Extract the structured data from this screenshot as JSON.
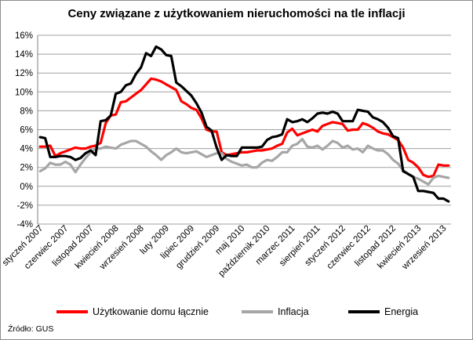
{
  "chart_data": {
    "type": "line",
    "title": "Ceny związane z użytkowaniem nieruchomości na tle inflacji",
    "source": "Źródło: GUS",
    "ylim": [
      -4,
      16
    ],
    "yticks": [
      -4,
      -2,
      0,
      2,
      4,
      6,
      8,
      10,
      12,
      14,
      16
    ],
    "ytick_format": "percent",
    "grid": "horizontal",
    "legend_position": "bottom",
    "x": [
      "styczeń 2007",
      "luty 2007",
      "marzec 2007",
      "kwiecień 2007",
      "maj 2007",
      "czerwiec 2007",
      "lipiec 2007",
      "sierpień 2007",
      "wrzesień 2007",
      "październik 2007",
      "listopad 2007",
      "grudzień 2007",
      "styczeń 2008",
      "luty 2008",
      "marzec 2008",
      "kwiecień 2008",
      "maj 2008",
      "czerwiec 2008",
      "lipiec 2008",
      "sierpień 2008",
      "wrzesień 2008",
      "październik 2008",
      "listopad 2008",
      "grudzień 2008",
      "styczeń 2009",
      "luty 2009",
      "marzec 2009",
      "kwiecień 2009",
      "maj 2009",
      "czerwiec 2009",
      "lipiec 2009",
      "sierpień 2009",
      "wrzesień 2009",
      "październik 2009",
      "listopad 2009",
      "grudzień 2009",
      "styczeń 2010",
      "luty 2010",
      "marzec 2010",
      "kwiecień 2010",
      "maj 2010",
      "czerwiec 2010",
      "lipiec 2010",
      "sierpień 2010",
      "wrzesień 2010",
      "październik 2010",
      "listopad 2010",
      "grudzień 2010",
      "styczeń 2011",
      "luty 2011",
      "marzec 2011",
      "kwiecień 2011",
      "maj 2011",
      "czerwiec 2011",
      "lipiec 2011",
      "sierpień 2011",
      "wrzesień 2011",
      "październik 2011",
      "listopad 2011",
      "grudzień 2011",
      "styczeń 2012",
      "luty 2012",
      "marzec 2012",
      "kwiecień 2012",
      "maj 2012",
      "czerwiec 2012",
      "lipiec 2012",
      "sierpień 2012",
      "wrzesień 2012",
      "październik 2012",
      "listopad 2012",
      "grudzień 2012",
      "styczeń 2013",
      "luty 2013",
      "marzec 2013",
      "kwiecień 2013",
      "maj 2013",
      "czerwiec 2013",
      "lipiec 2013",
      "sierpień 2013",
      "wrzesień 2013",
      "październik 2013"
    ],
    "xtick_labels": [
      {
        "index": 0,
        "label": "styczeń 2007"
      },
      {
        "index": 5,
        "label": "czerwiec 2007"
      },
      {
        "index": 10,
        "label": "listopad 2007"
      },
      {
        "index": 15,
        "label": "kwiecień 2008"
      },
      {
        "index": 20,
        "label": "wrzesień 2008"
      },
      {
        "index": 25,
        "label": "luty 2009"
      },
      {
        "index": 30,
        "label": "lipiec 2009"
      },
      {
        "index": 35,
        "label": "grudzień 2009"
      },
      {
        "index": 40,
        "label": "maj 2010"
      },
      {
        "index": 45,
        "label": "październik 2010"
      },
      {
        "index": 50,
        "label": "marzec 2011"
      },
      {
        "index": 55,
        "label": "sierpień 2011"
      },
      {
        "index": 60,
        "label": "styczeń 2012"
      },
      {
        "index": 65,
        "label": "czerwiec 2012"
      },
      {
        "index": 70,
        "label": "listopad 2012"
      },
      {
        "index": 75,
        "label": "kwiecień 2013"
      },
      {
        "index": 80,
        "label": "wrzesień 2013"
      }
    ],
    "series": [
      {
        "name": "Użytkowanie domu łącznie",
        "color": "#ff0000",
        "values": [
          4.2,
          4.2,
          4.3,
          3.2,
          3.5,
          3.7,
          3.9,
          4.1,
          4.0,
          4.0,
          4.2,
          4.3,
          4.6,
          6.7,
          7.5,
          7.6,
          8.9,
          9.0,
          9.4,
          9.8,
          10.2,
          10.8,
          11.4,
          11.3,
          11.1,
          10.8,
          10.5,
          10.2,
          9.0,
          8.7,
          8.3,
          8.1,
          7.2,
          6.0,
          5.8,
          5.8,
          3.6,
          3.3,
          3.4,
          3.5,
          3.6,
          3.6,
          3.7,
          3.8,
          3.8,
          3.9,
          4.0,
          4.3,
          4.5,
          5.7,
          6.1,
          5.4,
          5.6,
          5.8,
          6.0,
          5.8,
          6.4,
          6.6,
          6.8,
          6.7,
          6.6,
          5.9,
          6.0,
          6.0,
          6.7,
          6.5,
          6.2,
          5.8,
          5.6,
          5.5,
          5.2,
          4.9,
          4.1,
          2.8,
          2.5,
          2.0,
          1.2,
          1.0,
          1.1,
          2.3,
          2.2,
          2.2
        ]
      },
      {
        "name": "Inflacja",
        "color": "#a6a6a6",
        "values": [
          1.6,
          1.9,
          2.5,
          2.3,
          2.3,
          2.6,
          2.3,
          1.5,
          2.3,
          3.0,
          3.6,
          4.0,
          4.0,
          4.2,
          4.1,
          4.0,
          4.4,
          4.6,
          4.8,
          4.8,
          4.5,
          4.2,
          3.7,
          3.3,
          2.8,
          3.3,
          3.6,
          4.0,
          3.6,
          3.5,
          3.6,
          3.7,
          3.4,
          3.1,
          3.3,
          3.5,
          3.5,
          2.9,
          2.6,
          2.4,
          2.2,
          2.3,
          2.0,
          2.0,
          2.5,
          2.8,
          2.7,
          3.1,
          3.6,
          3.6,
          4.3,
          4.5,
          5.0,
          4.2,
          4.1,
          4.3,
          3.9,
          4.3,
          4.8,
          4.6,
          4.1,
          4.3,
          3.9,
          4.0,
          3.6,
          4.3,
          4.0,
          3.8,
          3.8,
          3.4,
          2.8,
          2.4,
          1.7,
          1.3,
          1.0,
          0.8,
          0.5,
          0.2,
          0.9,
          1.1,
          1.0,
          0.9
        ]
      },
      {
        "name": "Energia",
        "color": "#000000",
        "values": [
          5.2,
          5.1,
          3.1,
          3.1,
          3.2,
          3.2,
          3.1,
          2.8,
          3.0,
          3.5,
          3.8,
          3.3,
          6.9,
          7.0,
          7.5,
          9.8,
          10.0,
          10.7,
          10.9,
          11.9,
          12.6,
          14.1,
          13.8,
          14.8,
          14.5,
          13.9,
          13.8,
          11.0,
          10.6,
          10.1,
          9.6,
          8.8,
          7.8,
          6.3,
          5.9,
          4.1,
          2.8,
          3.3,
          3.2,
          3.2,
          4.1,
          4.1,
          4.1,
          4.1,
          4.2,
          4.9,
          5.2,
          5.3,
          5.5,
          7.1,
          6.8,
          6.9,
          7.1,
          6.8,
          7.2,
          7.7,
          7.8,
          7.7,
          7.9,
          7.7,
          6.9,
          6.9,
          6.9,
          8.1,
          8.0,
          7.9,
          7.3,
          7.1,
          6.8,
          6.2,
          5.3,
          5.1,
          1.6,
          1.3,
          1.0,
          -0.5,
          -0.5,
          -0.6,
          -0.7,
          -1.3,
          -1.3,
          -1.6
        ]
      }
    ]
  }
}
